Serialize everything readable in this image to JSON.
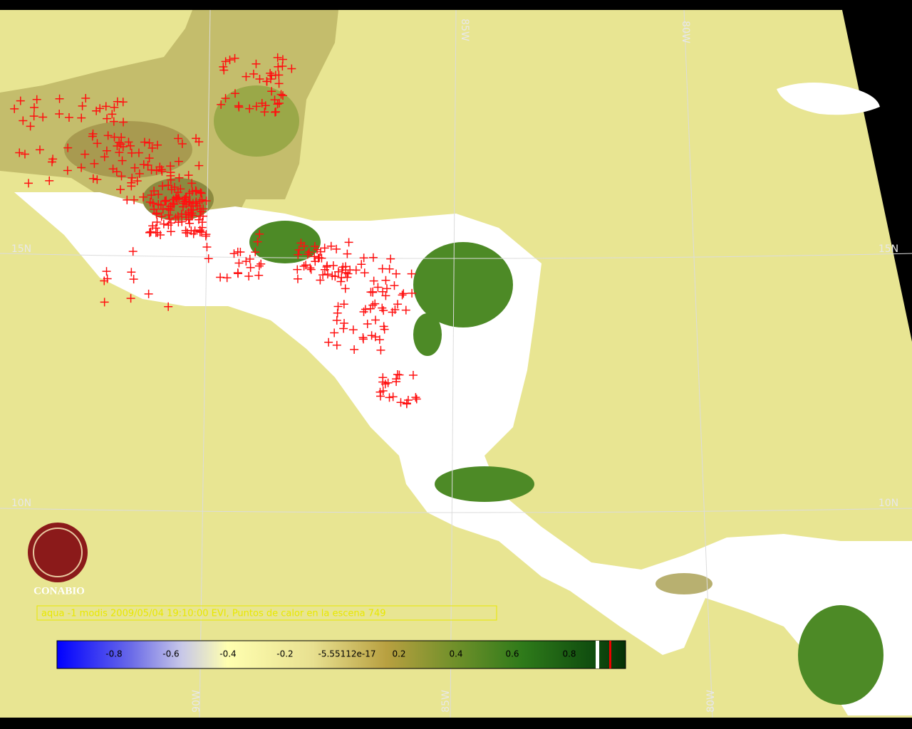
{
  "map": {
    "grid_labels": [
      "85W",
      "80W",
      "15N",
      "15N",
      "10N",
      "10N",
      "90W",
      "85W",
      "80W"
    ],
    "logo_text": "CONABIO",
    "caption": "aqua -1 modis 2009/05/04 19:10:00 EVI, Puntos de calor en la escena 749",
    "colorbar_labels": [
      "-0.8",
      "-0.6",
      "-0.4",
      "-0.2",
      "-5.55112e-17",
      "0.2",
      "0.4",
      "0.6",
      "0.8"
    ]
  }
}
